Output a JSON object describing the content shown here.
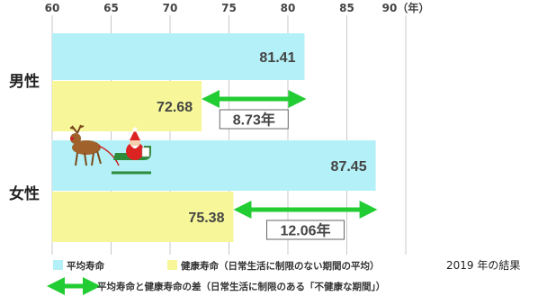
{
  "chart_data": {
    "type": "bar",
    "orientation": "horizontal",
    "x_ticks": [
      "60",
      "65",
      "70",
      "75",
      "80",
      "85",
      "90（年）"
    ],
    "xlim": [
      60,
      90
    ],
    "categories": [
      "男性",
      "女性"
    ],
    "series": [
      {
        "name": "平均寿命",
        "values": [
          81.41,
          87.45
        ],
        "labels": [
          "81.41",
          "87.45"
        ],
        "color": "#b3f0f7"
      },
      {
        "name": "健康寿命（日常生活に制限のない期間の平均）",
        "values": [
          72.68,
          75.38
        ],
        "labels": [
          "72.68",
          "75.38"
        ],
        "color": "#f7f79a"
      }
    ],
    "differences": {
      "name": "平均寿命と健康寿命の差（日常生活に制限のある「不健康な期間」）",
      "labels": [
        "8.73年",
        "12.06年"
      ],
      "color": "#22cc33"
    },
    "note": "2019 年の結果",
    "grid": true,
    "legend_position": "bottom"
  }
}
